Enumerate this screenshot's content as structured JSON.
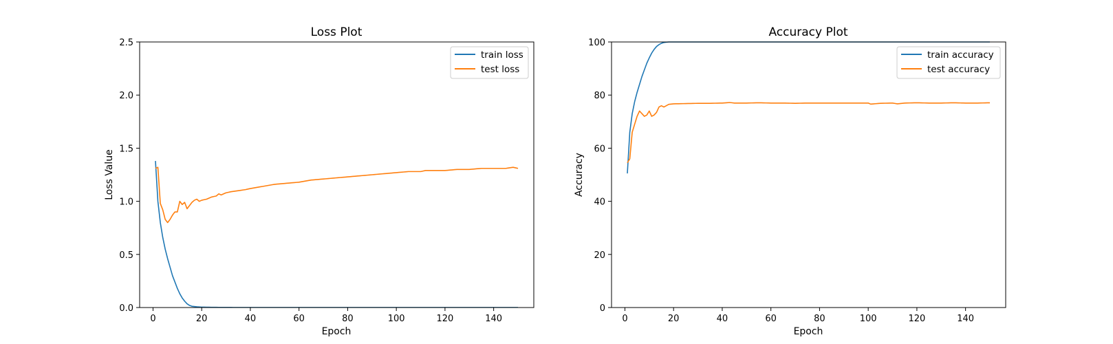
{
  "chart_data": [
    {
      "type": "line",
      "title": "Loss Plot",
      "xlabel": "Epoch",
      "ylabel": "Loss Value",
      "xlim": [
        -5.5,
        156.5
      ],
      "ylim": [
        0,
        2.5
      ],
      "xticks": [
        0,
        20,
        40,
        60,
        80,
        100,
        120,
        140
      ],
      "yticks": [
        0.0,
        0.5,
        1.0,
        1.5,
        2.0,
        2.5
      ],
      "ytick_labels": [
        "0.0",
        "0.5",
        "1.0",
        "1.5",
        "2.0",
        "2.5"
      ],
      "grid": false,
      "legend": "top-right",
      "series": [
        {
          "name": "train loss",
          "color": "#1f77b4",
          "points": [
            [
              1,
              1.38
            ],
            [
              2,
              1.0
            ],
            [
              3,
              0.8
            ],
            [
              4,
              0.66
            ],
            [
              5,
              0.55
            ],
            [
              6,
              0.46
            ],
            [
              7,
              0.38
            ],
            [
              8,
              0.3
            ],
            [
              9,
              0.24
            ],
            [
              10,
              0.18
            ],
            [
              11,
              0.13
            ],
            [
              12,
              0.09
            ],
            [
              13,
              0.06
            ],
            [
              14,
              0.035
            ],
            [
              15,
              0.02
            ],
            [
              16,
              0.012
            ],
            [
              18,
              0.007
            ],
            [
              20,
              0.004
            ],
            [
              25,
              0.002
            ],
            [
              30,
              0.001
            ],
            [
              40,
              0.0005
            ],
            [
              60,
              0.0003
            ],
            [
              80,
              0.0002
            ],
            [
              100,
              0.0001
            ],
            [
              150,
              0.0001
            ]
          ]
        },
        {
          "name": "test loss",
          "color": "#ff7f0e",
          "points": [
            [
              1,
              1.31
            ],
            [
              2,
              1.32
            ],
            [
              3,
              0.98
            ],
            [
              4,
              0.92
            ],
            [
              5,
              0.83
            ],
            [
              6,
              0.8
            ],
            [
              7,
              0.83
            ],
            [
              8,
              0.87
            ],
            [
              9,
              0.9
            ],
            [
              10,
              0.9
            ],
            [
              11,
              1.0
            ],
            [
              12,
              0.97
            ],
            [
              13,
              0.99
            ],
            [
              14,
              0.93
            ],
            [
              15,
              0.96
            ],
            [
              16,
              0.99
            ],
            [
              17,
              1.01
            ],
            [
              18,
              1.02
            ],
            [
              19,
              1.0
            ],
            [
              20,
              1.01
            ],
            [
              22,
              1.02
            ],
            [
              24,
              1.04
            ],
            [
              26,
              1.05
            ],
            [
              27,
              1.07
            ],
            [
              28,
              1.06
            ],
            [
              30,
              1.08
            ],
            [
              32,
              1.09
            ],
            [
              35,
              1.1
            ],
            [
              38,
              1.11
            ],
            [
              40,
              1.12
            ],
            [
              45,
              1.14
            ],
            [
              50,
              1.16
            ],
            [
              55,
              1.17
            ],
            [
              60,
              1.18
            ],
            [
              65,
              1.2
            ],
            [
              70,
              1.21
            ],
            [
              75,
              1.22
            ],
            [
              80,
              1.23
            ],
            [
              85,
              1.24
            ],
            [
              90,
              1.25
            ],
            [
              95,
              1.26
            ],
            [
              100,
              1.27
            ],
            [
              105,
              1.28
            ],
            [
              110,
              1.28
            ],
            [
              112,
              1.29
            ],
            [
              115,
              1.29
            ],
            [
              120,
              1.29
            ],
            [
              125,
              1.3
            ],
            [
              130,
              1.3
            ],
            [
              135,
              1.31
            ],
            [
              140,
              1.31
            ],
            [
              145,
              1.31
            ],
            [
              148,
              1.32
            ],
            [
              150,
              1.31
            ]
          ]
        }
      ]
    },
    {
      "type": "line",
      "title": "Accuracy Plot",
      "xlabel": "Epoch",
      "ylabel": "Accuracy",
      "xlim": [
        -5.5,
        156.5
      ],
      "ylim": [
        0,
        100
      ],
      "xticks": [
        0,
        20,
        40,
        60,
        80,
        100,
        120,
        140
      ],
      "yticks": [
        0,
        20,
        40,
        60,
        80,
        100
      ],
      "ytick_labels": [
        "0",
        "20",
        "40",
        "60",
        "80",
        "100"
      ],
      "grid": false,
      "legend": "top-right",
      "series": [
        {
          "name": "train accuracy",
          "color": "#1f77b4",
          "points": [
            [
              1,
              50.5
            ],
            [
              2,
              66
            ],
            [
              3,
              73
            ],
            [
              4,
              77.5
            ],
            [
              5,
              81
            ],
            [
              6,
              84
            ],
            [
              7,
              87
            ],
            [
              8,
              89.5
            ],
            [
              9,
              92
            ],
            [
              10,
              94
            ],
            [
              11,
              95.8
            ],
            [
              12,
              97.2
            ],
            [
              13,
              98.3
            ],
            [
              14,
              99.0
            ],
            [
              15,
              99.5
            ],
            [
              16,
              99.8
            ],
            [
              18,
              100
            ],
            [
              20,
              100
            ],
            [
              25,
              100
            ],
            [
              150,
              100
            ]
          ]
        },
        {
          "name": "test accuracy",
          "color": "#ff7f0e",
          "points": [
            [
              1,
              54.5
            ],
            [
              2,
              56
            ],
            [
              3,
              66
            ],
            [
              4,
              69
            ],
            [
              5,
              72
            ],
            [
              6,
              74
            ],
            [
              7,
              73
            ],
            [
              8,
              72
            ],
            [
              9,
              72.5
            ],
            [
              10,
              74
            ],
            [
              11,
              72
            ],
            [
              12,
              72.5
            ],
            [
              13,
              73.5
            ],
            [
              14,
              75.5
            ],
            [
              15,
              76
            ],
            [
              16,
              75.5
            ],
            [
              17,
              76
            ],
            [
              18,
              76.5
            ],
            [
              20,
              76.7
            ],
            [
              25,
              76.8
            ],
            [
              30,
              76.9
            ],
            [
              35,
              76.9
            ],
            [
              40,
              77
            ],
            [
              43,
              77.2
            ],
            [
              45,
              77
            ],
            [
              50,
              77
            ],
            [
              55,
              77.1
            ],
            [
              60,
              77
            ],
            [
              65,
              77
            ],
            [
              70,
              76.9
            ],
            [
              75,
              77
            ],
            [
              80,
              77
            ],
            [
              85,
              77
            ],
            [
              90,
              77
            ],
            [
              95,
              77
            ],
            [
              100,
              77
            ],
            [
              101,
              76.6
            ],
            [
              105,
              76.9
            ],
            [
              110,
              77
            ],
            [
              112,
              76.7
            ],
            [
              115,
              77
            ],
            [
              120,
              77.1
            ],
            [
              125,
              77
            ],
            [
              130,
              77
            ],
            [
              135,
              77.1
            ],
            [
              140,
              77
            ],
            [
              145,
              77
            ],
            [
              150,
              77.1
            ]
          ]
        }
      ]
    }
  ]
}
